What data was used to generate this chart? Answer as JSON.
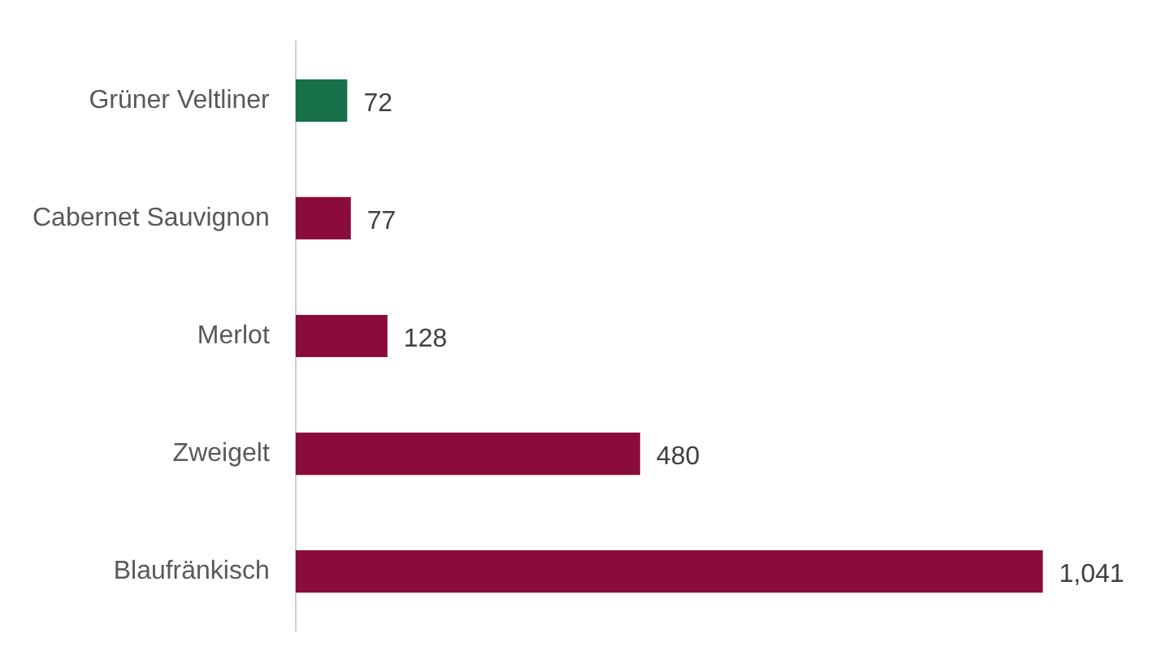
{
  "chart_data": {
    "type": "bar",
    "orientation": "horizontal",
    "categories": [
      "Grüner Veltliner",
      "Cabernet Sauvignon",
      "Merlot",
      "Zweigelt",
      "Blaufränkisch"
    ],
    "values": [
      72,
      77,
      128,
      480,
      1041
    ],
    "colors": [
      "#16704a",
      "#8a0c3c",
      "#8a0c3c",
      "#8a0c3c",
      "#8a0c3c"
    ],
    "value_labels": [
      "72",
      "77",
      "128",
      "480",
      "1,041"
    ],
    "grid": false,
    "legend": false
  }
}
